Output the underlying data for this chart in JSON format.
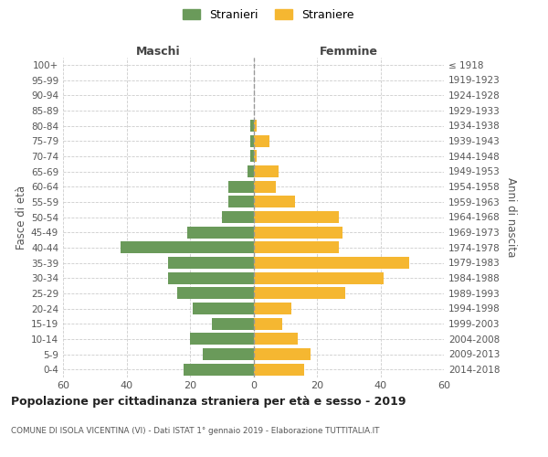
{
  "age_groups": [
    "0-4",
    "5-9",
    "10-14",
    "15-19",
    "20-24",
    "25-29",
    "30-34",
    "35-39",
    "40-44",
    "45-49",
    "50-54",
    "55-59",
    "60-64",
    "65-69",
    "70-74",
    "75-79",
    "80-84",
    "85-89",
    "90-94",
    "95-99",
    "100+"
  ],
  "birth_years": [
    "2014-2018",
    "2009-2013",
    "2004-2008",
    "1999-2003",
    "1994-1998",
    "1989-1993",
    "1984-1988",
    "1979-1983",
    "1974-1978",
    "1969-1973",
    "1964-1968",
    "1959-1963",
    "1954-1958",
    "1949-1953",
    "1944-1948",
    "1939-1943",
    "1934-1938",
    "1929-1933",
    "1924-1928",
    "1919-1923",
    "≤ 1918"
  ],
  "maschi": [
    22,
    16,
    20,
    13,
    19,
    24,
    27,
    27,
    42,
    21,
    10,
    8,
    8,
    2,
    1,
    1,
    1,
    0,
    0,
    0,
    0
  ],
  "femmine": [
    16,
    18,
    14,
    9,
    12,
    29,
    41,
    49,
    27,
    28,
    27,
    13,
    7,
    8,
    1,
    5,
    1,
    0,
    0,
    0,
    0
  ],
  "maschi_color": "#6a9a5a",
  "femmine_color": "#f5b731",
  "background_color": "#ffffff",
  "grid_color": "#cccccc",
  "title": "Popolazione per cittadinanza straniera per età e sesso - 2019",
  "subtitle": "COMUNE DI ISOLA VICENTINA (VI) - Dati ISTAT 1° gennaio 2019 - Elaborazione TUTTITALIA.IT",
  "ylabel_left": "Fasce di età",
  "ylabel_right": "Anni di nascita",
  "xlabel_left": "Maschi",
  "xlabel_right": "Femmine",
  "legend_maschi": "Stranieri",
  "legend_femmine": "Straniere",
  "xlim": 60,
  "xticks": [
    -60,
    -40,
    -20,
    0,
    20,
    40,
    60
  ]
}
